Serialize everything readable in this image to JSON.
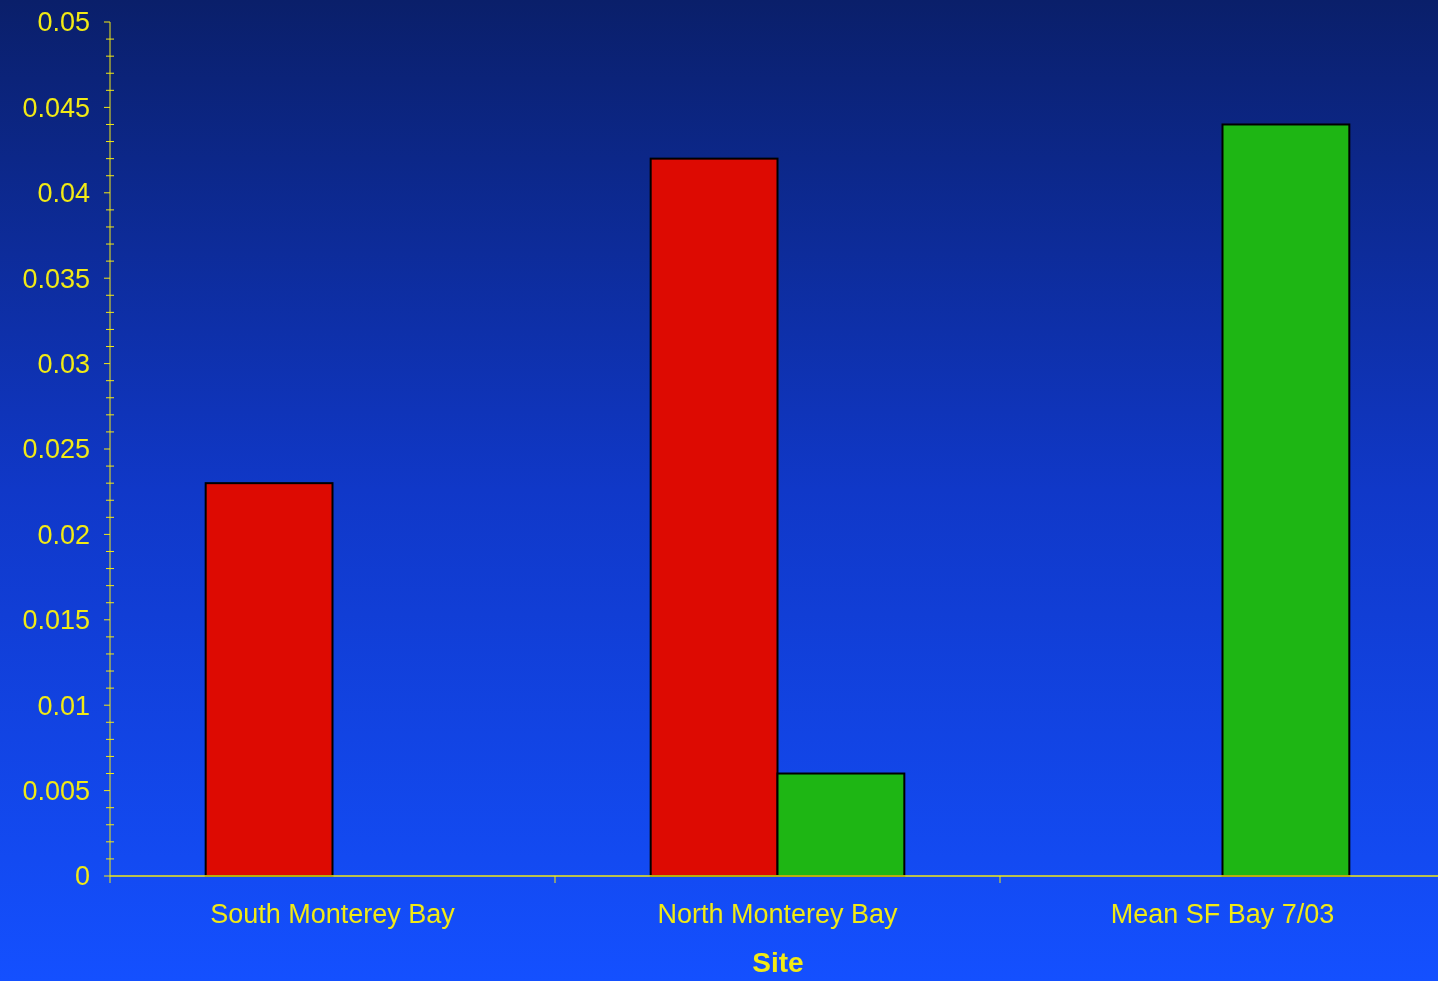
{
  "chart_data": {
    "type": "bar",
    "xlabel": "Site",
    "categories": [
      "South Monterey Bay",
      "North Monterey Bay",
      "Mean SF Bay 7/03"
    ],
    "series": [
      {
        "color": "#dd0a02",
        "values": [
          0.023,
          0.042,
          null
        ]
      },
      {
        "color": "#1eb614",
        "values": [
          null,
          0.006,
          0.044
        ]
      }
    ],
    "ylim": [
      0,
      0.05
    ],
    "yticks": [
      0,
      {
        "value": 0.001,
        "label": null
      },
      {
        "value": 0.002,
        "label": null
      },
      {
        "value": 0.003,
        "label": null
      },
      {
        "value": 0.004,
        "label": null
      },
      0.005,
      {
        "value": 0.006,
        "label": null
      },
      {
        "value": 0.007,
        "label": null
      },
      {
        "value": 0.008,
        "label": null
      },
      {
        "value": 0.009,
        "label": null
      },
      0.01,
      {
        "value": 0.011,
        "label": null
      },
      {
        "value": 0.012,
        "label": null
      },
      {
        "value": 0.013,
        "label": null
      },
      {
        "value": 0.014,
        "label": null
      },
      0.015,
      {
        "value": 0.016,
        "label": null
      },
      {
        "value": 0.017,
        "label": null
      },
      {
        "value": 0.018,
        "label": null
      },
      {
        "value": 0.019,
        "label": null
      },
      0.02,
      {
        "value": 0.021,
        "label": null
      },
      {
        "value": 0.022,
        "label": null
      },
      {
        "value": 0.023,
        "label": null
      },
      {
        "value": 0.024,
        "label": null
      },
      0.025,
      {
        "value": 0.026,
        "label": null
      },
      {
        "value": 0.027,
        "label": null
      },
      {
        "value": 0.028,
        "label": null
      },
      {
        "value": 0.029,
        "label": null
      },
      0.03,
      {
        "value": 0.031,
        "label": null
      },
      {
        "value": 0.032,
        "label": null
      },
      {
        "value": 0.033,
        "label": null
      },
      {
        "value": 0.034,
        "label": null
      },
      0.035,
      {
        "value": 0.036,
        "label": null
      },
      {
        "value": 0.037,
        "label": null
      },
      {
        "value": 0.038,
        "label": null
      },
      {
        "value": 0.039,
        "label": null
      },
      0.04,
      {
        "value": 0.041,
        "label": null
      },
      {
        "value": 0.042,
        "label": null
      },
      {
        "value": 0.043,
        "label": null
      },
      {
        "value": 0.044,
        "label": null
      },
      0.045,
      {
        "value": 0.046,
        "label": null
      },
      {
        "value": 0.047,
        "label": null
      },
      {
        "value": 0.048,
        "label": null
      },
      {
        "value": 0.049,
        "label": null
      },
      0.05
    ],
    "grid": false
  }
}
